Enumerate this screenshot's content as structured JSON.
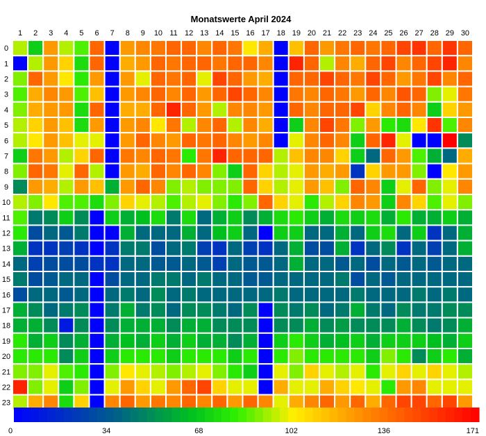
{
  "chart_data": {
    "type": "heatmap",
    "title": "Monatswerte April 2024",
    "x_categories": [
      "1",
      "2",
      "3",
      "4",
      "5",
      "6",
      "7",
      "8",
      "9",
      "10",
      "11",
      "12",
      "13",
      "14",
      "15",
      "16",
      "17",
      "18",
      "19",
      "20",
      "21",
      "22",
      "23",
      "24",
      "25",
      "26",
      "27",
      "28",
      "29",
      "30"
    ],
    "y_categories": [
      "0",
      "1",
      "2",
      "3",
      "4",
      "5",
      "6",
      "7",
      "8",
      "9",
      "10",
      "11",
      "12",
      "13",
      "14",
      "15",
      "16",
      "17",
      "18",
      "19",
      "20",
      "21",
      "22",
      "23"
    ],
    "colorbar": {
      "min": 0,
      "max": 171,
      "ticks": [
        0,
        34,
        68,
        102,
        136,
        171
      ]
    },
    "values": [
      [
        95,
        70,
        125,
        95,
        85,
        140,
        0,
        125,
        130,
        135,
        140,
        140,
        130,
        140,
        135,
        105,
        120,
        0,
        115,
        140,
        125,
        135,
        140,
        135,
        140,
        150,
        155,
        140,
        155,
        140
      ],
      [
        0,
        95,
        125,
        110,
        75,
        140,
        0,
        120,
        125,
        140,
        135,
        140,
        140,
        135,
        140,
        140,
        130,
        0,
        160,
        140,
        95,
        130,
        120,
        140,
        150,
        130,
        140,
        150,
        160,
        130
      ],
      [
        90,
        140,
        125,
        105,
        80,
        125,
        0,
        125,
        100,
        140,
        135,
        140,
        100,
        150,
        140,
        125,
        120,
        0,
        140,
        140,
        150,
        140,
        135,
        150,
        140,
        125,
        135,
        150,
        130,
        140
      ],
      [
        85,
        120,
        130,
        125,
        85,
        115,
        0,
        125,
        130,
        140,
        130,
        140,
        125,
        140,
        150,
        140,
        130,
        0,
        135,
        130,
        140,
        135,
        125,
        140,
        130,
        145,
        140,
        90,
        100,
        135
      ],
      [
        90,
        120,
        125,
        125,
        75,
        140,
        0,
        120,
        120,
        140,
        160,
        140,
        125,
        95,
        130,
        130,
        125,
        0,
        140,
        130,
        140,
        140,
        150,
        110,
        130,
        140,
        130,
        70,
        110,
        125
      ],
      [
        95,
        110,
        125,
        115,
        75,
        125,
        0,
        125,
        130,
        105,
        135,
        95,
        130,
        140,
        95,
        130,
        120,
        0,
        70,
        130,
        150,
        135,
        90,
        125,
        80,
        75,
        105,
        155,
        85,
        130
      ],
      [
        95,
        105,
        125,
        115,
        100,
        100,
        0,
        125,
        140,
        130,
        125,
        140,
        135,
        140,
        130,
        125,
        130,
        0,
        100,
        130,
        140,
        130,
        70,
        140,
        160,
        100,
        0,
        0,
        171,
        50
      ],
      [
        70,
        135,
        125,
        95,
        110,
        140,
        0,
        135,
        130,
        140,
        135,
        80,
        135,
        160,
        140,
        140,
        140,
        95,
        115,
        130,
        130,
        110,
        70,
        40,
        140,
        125,
        85,
        60,
        40,
        120
      ],
      [
        90,
        140,
        135,
        100,
        140,
        95,
        0,
        125,
        120,
        140,
        130,
        140,
        130,
        90,
        70,
        140,
        110,
        95,
        100,
        125,
        120,
        125,
        20,
        110,
        125,
        125,
        90,
        0,
        105,
        125
      ],
      [
        50,
        125,
        120,
        95,
        125,
        115,
        60,
        125,
        140,
        130,
        90,
        95,
        90,
        90,
        90,
        140,
        110,
        95,
        100,
        125,
        115,
        90,
        140,
        130,
        70,
        100,
        140,
        90,
        100,
        130
      ],
      [
        95,
        90,
        105,
        85,
        85,
        75,
        90,
        110,
        100,
        95,
        85,
        95,
        100,
        90,
        80,
        90,
        140,
        110,
        100,
        80,
        95,
        110,
        130,
        125,
        70,
        130,
        110,
        85,
        100,
        90
      ],
      [
        85,
        45,
        50,
        70,
        50,
        0,
        70,
        60,
        65,
        75,
        45,
        75,
        40,
        60,
        70,
        50,
        60,
        75,
        80,
        70,
        60,
        75,
        70,
        75,
        60,
        80,
        60,
        60,
        70,
        60
      ],
      [
        80,
        30,
        40,
        35,
        45,
        0,
        0,
        60,
        40,
        40,
        40,
        60,
        40,
        65,
        70,
        40,
        0,
        70,
        70,
        40,
        40,
        60,
        40,
        70,
        75,
        40,
        70,
        20,
        40,
        60
      ],
      [
        60,
        20,
        20,
        25,
        20,
        0,
        20,
        45,
        45,
        30,
        40,
        45,
        25,
        20,
        40,
        25,
        20,
        40,
        60,
        30,
        30,
        60,
        20,
        40,
        50,
        20,
        40,
        25,
        40,
        60
      ],
      [
        40,
        25,
        30,
        30,
        30,
        20,
        20,
        40,
        40,
        35,
        35,
        40,
        35,
        25,
        40,
        35,
        35,
        40,
        60,
        40,
        40,
        35,
        40,
        30,
        40,
        35,
        40,
        35,
        40,
        40
      ],
      [
        45,
        30,
        35,
        40,
        40,
        0,
        30,
        40,
        40,
        45,
        45,
        40,
        45,
        40,
        40,
        35,
        35,
        40,
        40,
        40,
        40,
        45,
        30,
        40,
        35,
        40,
        40,
        40,
        40,
        40
      ],
      [
        30,
        40,
        40,
        35,
        40,
        0,
        40,
        45,
        40,
        50,
        40,
        45,
        40,
        40,
        40,
        40,
        40,
        45,
        40,
        40,
        40,
        40,
        45,
        40,
        40,
        40,
        45,
        40,
        45,
        40
      ],
      [
        60,
        50,
        40,
        45,
        50,
        0,
        45,
        60,
        45,
        50,
        40,
        50,
        50,
        45,
        40,
        50,
        0,
        50,
        45,
        50,
        40,
        45,
        60,
        45,
        40,
        50,
        45,
        45,
        50,
        50
      ],
      [
        60,
        60,
        50,
        10,
        50,
        0,
        50,
        60,
        60,
        60,
        50,
        60,
        60,
        50,
        50,
        50,
        0,
        50,
        50,
        60,
        50,
        55,
        50,
        50,
        50,
        60,
        50,
        45,
        50,
        60
      ],
      [
        80,
        60,
        70,
        50,
        60,
        0,
        60,
        65,
        60,
        70,
        60,
        70,
        60,
        60,
        50,
        60,
        0,
        70,
        80,
        70,
        60,
        65,
        70,
        60,
        70,
        70,
        70,
        65,
        60,
        70
      ],
      [
        80,
        80,
        80,
        50,
        70,
        0,
        70,
        80,
        80,
        80,
        70,
        80,
        80,
        80,
        70,
        80,
        0,
        80,
        90,
        80,
        80,
        80,
        80,
        70,
        90,
        80,
        50,
        70,
        80,
        60
      ],
      [
        90,
        90,
        100,
        85,
        80,
        0,
        90,
        105,
        100,
        95,
        90,
        95,
        100,
        90,
        80,
        70,
        0,
        100,
        90,
        110,
        100,
        95,
        100,
        80,
        100,
        110,
        100,
        110,
        100,
        95
      ],
      [
        160,
        90,
        100,
        70,
        90,
        0,
        100,
        125,
        110,
        100,
        125,
        140,
        150,
        110,
        100,
        100,
        0,
        120,
        100,
        100,
        120,
        110,
        105,
        100,
        80,
        125,
        130,
        100,
        100,
        100
      ],
      [
        95,
        120,
        130,
        75,
        110,
        0,
        130,
        140,
        125,
        135,
        130,
        140,
        130,
        140,
        125,
        140,
        130,
        100,
        120,
        130,
        140,
        125,
        140,
        120,
        140,
        150,
        150,
        140,
        150,
        125
      ]
    ]
  }
}
